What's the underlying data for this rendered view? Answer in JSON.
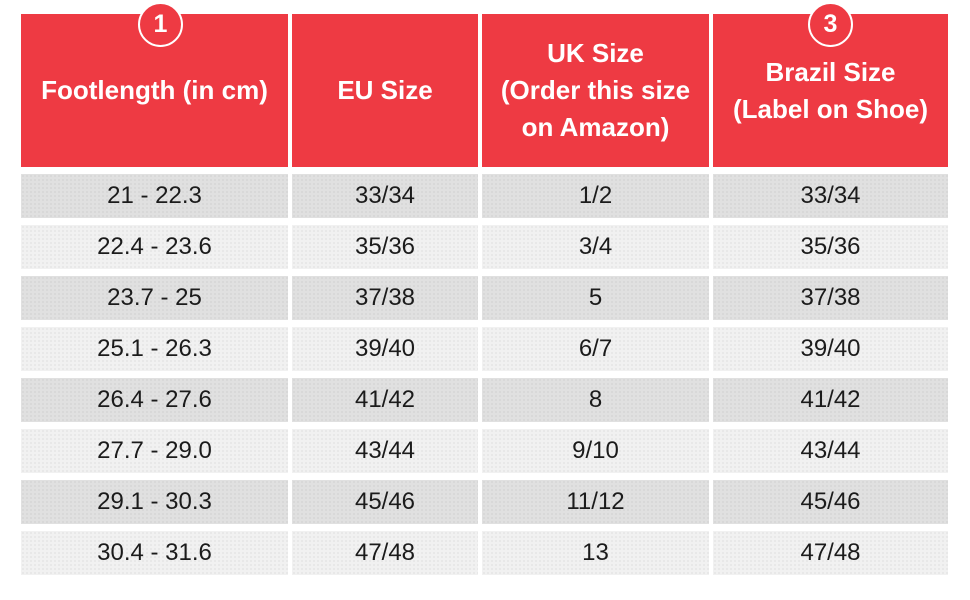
{
  "colors": {
    "header_red": "#ee3a43",
    "header_text": "#ffffff",
    "row_dark": "#e0e0e0",
    "row_light": "#f1f1f1",
    "body_text": "#1b1b1b",
    "badge_ring": "#ffffff"
  },
  "badges": [
    {
      "label": "1"
    },
    {
      "label": "3"
    }
  ],
  "chart_data": {
    "type": "table",
    "title": "",
    "columns": [
      "Footlength (in cm)",
      "EU Size",
      "UK Size\n(Order this size\non Amazon)",
      "Brazil Size\n(Label on Shoe)"
    ],
    "rows": [
      [
        "21 - 22.3",
        "33/34",
        "1/2",
        "33/34"
      ],
      [
        "22.4 - 23.6",
        "35/36",
        "3/4",
        "35/36"
      ],
      [
        "23.7 - 25",
        "37/38",
        "5",
        "37/38"
      ],
      [
        "25.1 - 26.3",
        "39/40",
        "6/7",
        "39/40"
      ],
      [
        "26.4 - 27.6",
        "41/42",
        "8",
        "41/42"
      ],
      [
        "27.7 - 29.0",
        "43/44",
        "9/10",
        "43/44"
      ],
      [
        "29.1 - 30.3",
        "45/46",
        "11/12",
        "45/46"
      ],
      [
        "30.4 - 31.6",
        "47/48",
        "13",
        "47/48"
      ]
    ]
  }
}
